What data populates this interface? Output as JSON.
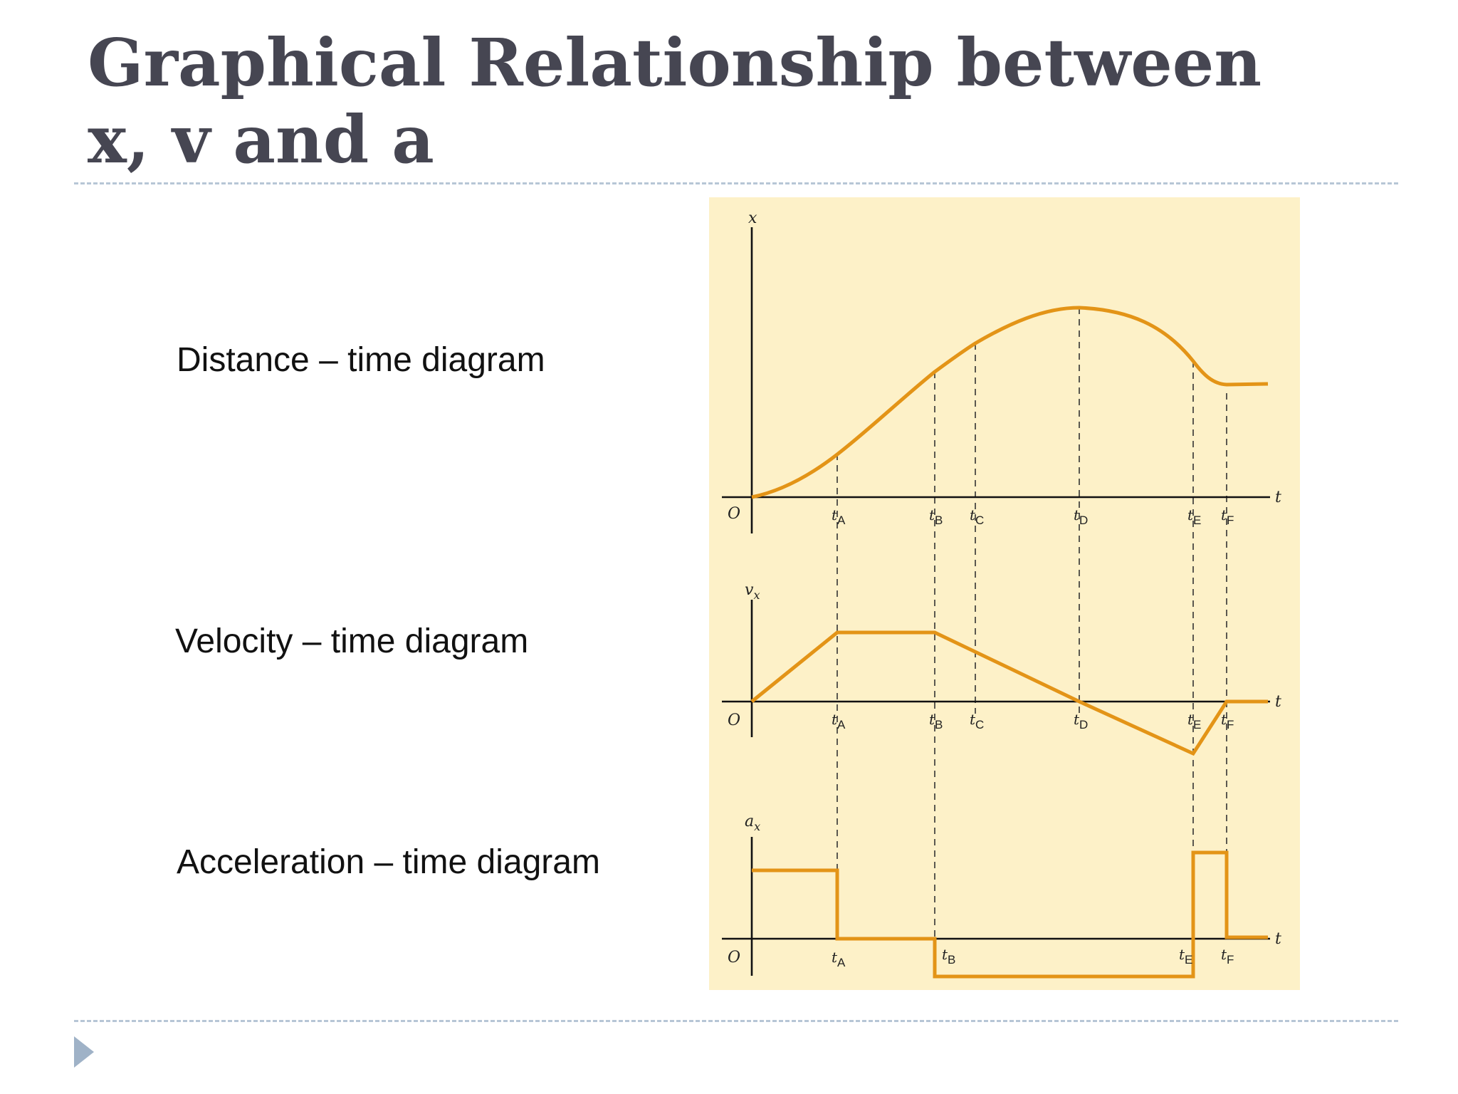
{
  "slide": {
    "title_line1": "Graphical Relationship between",
    "title_line2": "x, v and a",
    "labels": {
      "distance": "Distance – time diagram",
      "velocity": "Velocity – time diagram",
      "acceleration": "Acceleration – time diagram"
    },
    "nav_icon": "play-triangle-icon"
  },
  "colors": {
    "curve": "#e39417",
    "figure_bg": "#fdf1c8",
    "axes": "#111111",
    "title": "#464652",
    "rule": "#b7c6d6"
  },
  "chart_data": [
    {
      "type": "line",
      "ylabel": "x",
      "xlabel": "t",
      "origin": "O",
      "ticks": [
        "tA",
        "tB",
        "tC",
        "tD",
        "tE",
        "tF"
      ],
      "tick_labels": [
        {
          "t": "t",
          "sub": "A"
        },
        {
          "t": "t",
          "sub": "B"
        },
        {
          "t": "t",
          "sub": "C"
        },
        {
          "t": "t",
          "sub": "D"
        },
        {
          "t": "t",
          "sub": "E"
        },
        {
          "t": "t",
          "sub": "F"
        }
      ]
    },
    {
      "type": "line",
      "ylabel": "v",
      "ylabel_sub": "x",
      "xlabel": "t",
      "origin": "O",
      "tick_labels": [
        {
          "t": "t",
          "sub": "A"
        },
        {
          "t": "t",
          "sub": "B"
        },
        {
          "t": "t",
          "sub": "C"
        },
        {
          "t": "t",
          "sub": "D"
        },
        {
          "t": "t",
          "sub": "E"
        },
        {
          "t": "t",
          "sub": "F"
        }
      ]
    },
    {
      "type": "line",
      "ylabel": "a",
      "ylabel_sub": "x",
      "xlabel": "t",
      "origin": "O",
      "tick_labels": [
        {
          "t": "t",
          "sub": "A"
        },
        {
          "t": "t",
          "sub": "B"
        },
        {
          "t": "t",
          "sub": "E"
        },
        {
          "t": "t",
          "sub": "F"
        }
      ]
    }
  ]
}
